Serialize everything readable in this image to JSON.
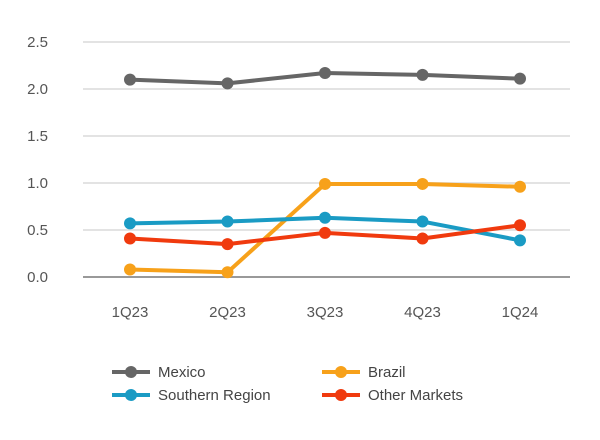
{
  "chart_data": {
    "type": "line",
    "categories": [
      "1Q23",
      "2Q23",
      "3Q23",
      "4Q23",
      "1Q24"
    ],
    "ylim": [
      0,
      2.5
    ],
    "yticks": [
      "0.0",
      "0.5",
      "1.0",
      "1.5",
      "2.0",
      "2.5"
    ],
    "ytick_values": [
      0,
      0.5,
      1.0,
      1.5,
      2.0,
      2.5
    ],
    "grid": true,
    "legend_position": "bottom",
    "series": [
      {
        "name": "Mexico",
        "color": "#666666",
        "values": [
          2.1,
          2.06,
          2.17,
          2.15,
          2.11
        ]
      },
      {
        "name": "Brazil",
        "color": "#F7A11A",
        "values": [
          0.08,
          0.05,
          0.99,
          0.99,
          0.96
        ]
      },
      {
        "name": "Southern Region",
        "color": "#1A9BC4",
        "values": [
          0.57,
          0.59,
          0.63,
          0.59,
          0.39
        ]
      },
      {
        "name": "Other Markets",
        "color": "#F03A0E",
        "values": [
          0.41,
          0.35,
          0.47,
          0.41,
          0.55
        ]
      }
    ]
  }
}
